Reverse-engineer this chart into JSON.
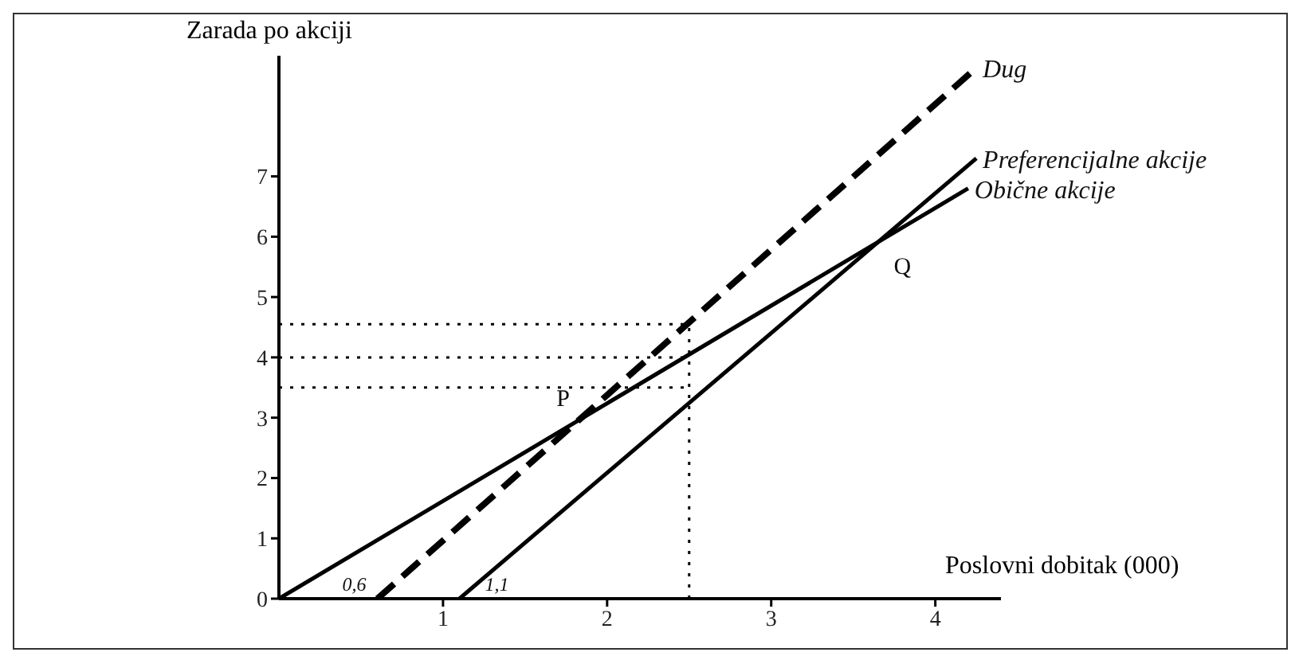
{
  "chart_data": {
    "type": "line",
    "xlabel": "Poslovni dobitak (000)",
    "ylabel": "Zarada po akciji",
    "xlim": [
      0,
      4.4
    ],
    "ylim": [
      0,
      9
    ],
    "xticks": [
      1,
      2,
      3,
      4
    ],
    "yticks": [
      0,
      1,
      2,
      3,
      4,
      5,
      6,
      7
    ],
    "grid": false,
    "legend": false,
    "marker": "none",
    "series": [
      {
        "name": "Dug",
        "color": "#000000",
        "line_style": "dashed",
        "x": [
          0.6,
          4.25
        ],
        "values": [
          0,
          8.8
        ]
      },
      {
        "name": "Preferencijalne akcije",
        "color": "#000000",
        "line_style": "solid",
        "x": [
          1.1,
          4.25
        ],
        "values": [
          0,
          7.3
        ]
      },
      {
        "name": "Obične akcije",
        "color": "#000000",
        "line_style": "solid",
        "x": [
          0,
          4.2
        ],
        "values": [
          0,
          6.8
        ]
      },
      {
        "color": "#000000",
        "line_style": "dotted",
        "x": [
          0,
          2.5
        ],
        "values": [
          4.55,
          4.55
        ]
      },
      {
        "color": "#000000",
        "line_style": "dotted",
        "x": [
          0,
          2.5
        ],
        "values": [
          4,
          4
        ]
      },
      {
        "color": "#000000",
        "line_style": "dotted",
        "x": [
          0,
          2.5
        ],
        "values": [
          3.5,
          3.5
        ]
      },
      {
        "color": "#000000",
        "line_style": "dotted",
        "x": [
          2.5,
          2.5
        ],
        "values": [
          0,
          4.55
        ]
      }
    ],
    "annotations": [
      {
        "text": "P",
        "x": 1.83,
        "y": 2.96
      },
      {
        "text": "Q",
        "x": 3.65,
        "y": 5.91
      },
      {
        "text": "0,6",
        "x": 0.6,
        "y": 0
      },
      {
        "text": "1,1",
        "x": 1.1,
        "y": 0
      }
    ]
  }
}
